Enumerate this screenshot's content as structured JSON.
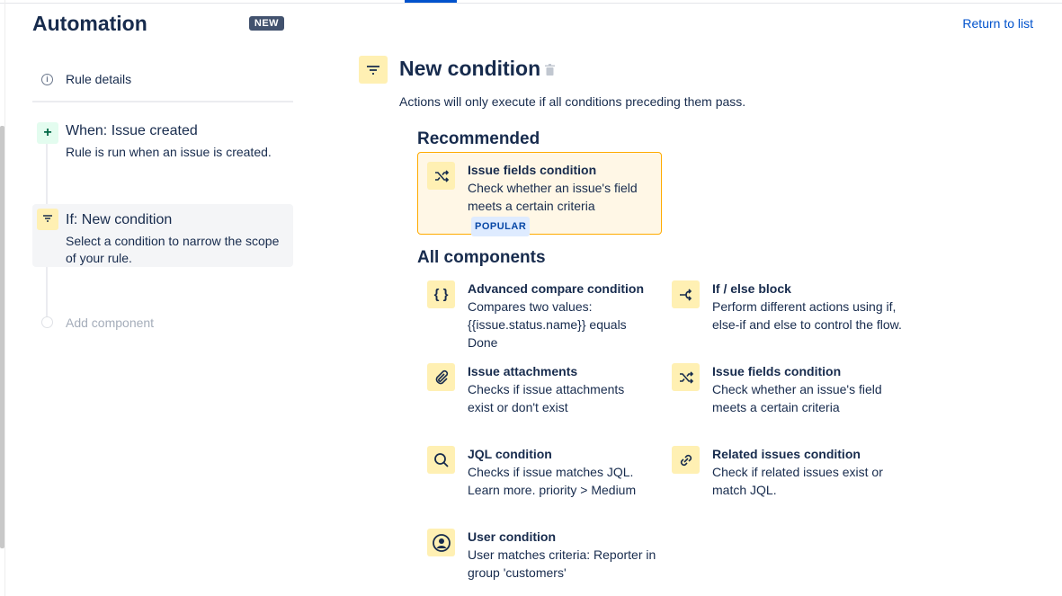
{
  "header": {
    "title": "Automation",
    "badge": "NEW",
    "return_link": "Return to list"
  },
  "sidebar": {
    "rule_details": "Rule details",
    "steps": [
      {
        "title": "When: Issue created",
        "desc": "Rule is run when an issue is created.",
        "icon": "plus-icon"
      },
      {
        "title": "If: New condition",
        "desc": "Select a condition to narrow the scope of your rule.",
        "icon": "filter-icon",
        "selected": true
      }
    ],
    "add_component": "Add component"
  },
  "main": {
    "title": "New condition",
    "subtitle": "Actions will only execute if all conditions preceding them pass.",
    "recommended_heading": "Recommended",
    "recommended": {
      "name": "Issue fields condition",
      "desc": "Check whether an issue's field meets a certain criteria",
      "badge": "POPULAR",
      "icon": "shuffle-icon"
    },
    "all_heading": "All components",
    "components": [
      {
        "name": "Advanced compare condition",
        "desc": "Compares two values: {{issue.status.name}} equals Done",
        "icon": "braces-icon"
      },
      {
        "name": "If / else block",
        "desc": "Perform different actions using if, else-if and else to control the flow.",
        "icon": "branch-icon"
      },
      {
        "name": "Issue attachments",
        "desc": "Checks if issue attachments exist or don't exist",
        "icon": "paperclip-icon"
      },
      {
        "name": "Issue fields condition",
        "desc": "Check whether an issue's field meets a certain criteria",
        "icon": "shuffle-icon"
      },
      {
        "name": "JQL condition",
        "desc": "Checks if issue matches JQL. Learn more. priority > Medium",
        "icon": "search-icon"
      },
      {
        "name": "Related issues condition",
        "desc": "Check if related issues exist or match JQL.",
        "icon": "link-icon"
      },
      {
        "name": "User condition",
        "desc": "User matches criteria: Reporter in group 'customers'",
        "icon": "user-icon"
      }
    ]
  },
  "colors": {
    "accent": "#0052cc",
    "tile": "#fff0b3",
    "recommended_bg": "#fff7e6",
    "recommended_border": "#ffab00"
  }
}
